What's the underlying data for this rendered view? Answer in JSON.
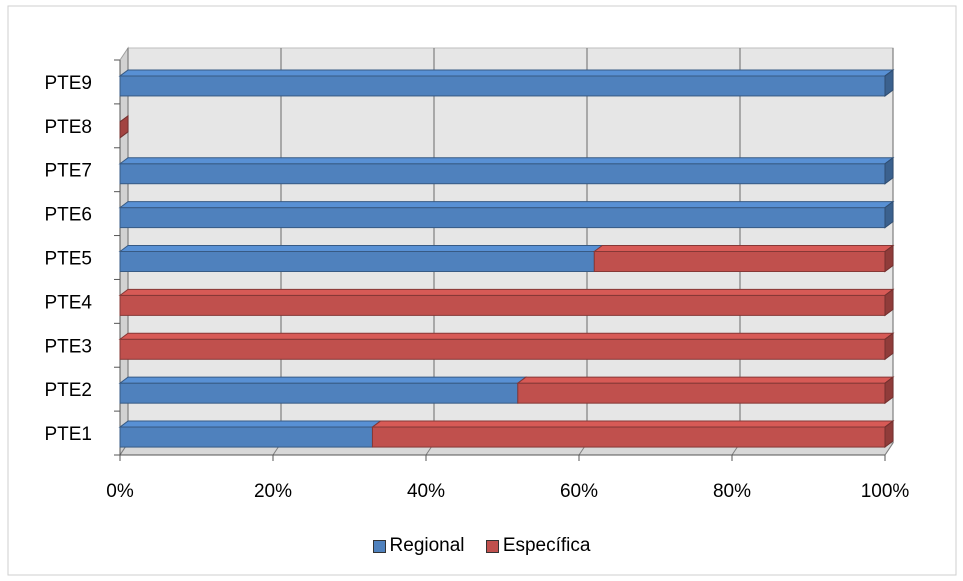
{
  "colors": {
    "regional": "#4F81BD",
    "especifica": "#C0504D",
    "wall": "#E6E6E6",
    "grid": "#7F7F7F"
  },
  "chart_data": {
    "type": "bar",
    "orientation": "horizontal",
    "stacked": "percent",
    "categories": [
      "PTE1",
      "PTE2",
      "PTE3",
      "PTE4",
      "PTE5",
      "PTE6",
      "PTE7",
      "PTE8",
      "PTE9"
    ],
    "series": [
      {
        "name": "Regional",
        "values": [
          33,
          52,
          0,
          0,
          62,
          100,
          100,
          0,
          100
        ]
      },
      {
        "name": "Específica",
        "values": [
          67,
          48,
          100,
          100,
          38,
          0,
          0,
          0,
          0
        ]
      }
    ],
    "xticks": [
      "0%",
      "20%",
      "40%",
      "60%",
      "80%",
      "100%"
    ],
    "xlim": [
      0,
      100
    ],
    "grid": true,
    "legend_position": "bottom"
  }
}
